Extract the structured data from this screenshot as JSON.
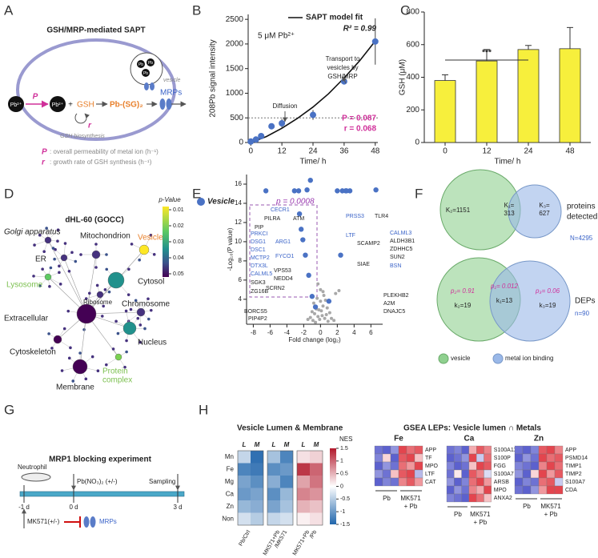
{
  "panel_labels": [
    "A",
    "B",
    "C",
    "D",
    "E",
    "F",
    "G",
    "H"
  ],
  "panel_a": {
    "title": "GSH/MRP-mediated SAPT",
    "pb_outside": "Pb²⁺",
    "pb_inside": "Pb²⁺",
    "plus": "+",
    "gsh": "GSH",
    "complex": "Pb-(SG)₂",
    "mrps": "MRPs",
    "vesicle": "vesicle",
    "pb_vesicle": "Pb",
    "biosynthesis": "GSH biosynthesis",
    "p_symbol": "P",
    "r_symbol": "r",
    "legend": [
      {
        "symbol": "P",
        "text": ": overall permeability of metal ion (h⁻¹)"
      },
      {
        "symbol": "r",
        "text": ": growth rate of GSH synthesis (h⁻¹)"
      }
    ]
  },
  "chart_data": [
    {
      "type": "scatter",
      "x": [
        0,
        2,
        4,
        8,
        12,
        24,
        36,
        48
      ],
      "values": [
        20,
        60,
        130,
        330,
        390,
        560,
        1240,
        2050
      ],
      "errors": [
        10,
        20,
        30,
        40,
        90,
        100,
        40,
        470
      ],
      "color": "#4a72c4",
      "fit": {
        "name": "SAPT model fit",
        "x": [
          0,
          6,
          12,
          18,
          24,
          30,
          36,
          42,
          48
        ],
        "values": [
          0,
          120,
          290,
          490,
          720,
          990,
          1310,
          1660,
          2060
        ]
      },
      "reference_line": 500,
      "xlim": [
        -1,
        49
      ],
      "ylim": [
        0,
        2600
      ],
      "xticks": [
        0,
        12,
        24,
        36,
        48
      ],
      "yticks": [
        0,
        500,
        1000,
        1500,
        2000,
        2500
      ],
      "xlabel": "Time/ h",
      "ylabel": "208Pb signal intensity",
      "annotations": {
        "condition": "5 μM Pb²⁺",
        "r_squared": "R² = 0.99",
        "transport": [
          "Transport to",
          "vesicles by",
          "GSH/MRP"
        ],
        "diffusion": "Diffusion",
        "p_fit": "P = 0.087",
        "r_fit": "r = 0.068"
      }
    },
    {
      "type": "bar",
      "categories": [
        "0",
        "12",
        "24",
        "48"
      ],
      "values": [
        380,
        500,
        570,
        575
      ],
      "errors": [
        35,
        70,
        25,
        130
      ],
      "color": "#f7ef3c",
      "ylim": [
        0,
        800
      ],
      "yticks": [
        0,
        200,
        400,
        600,
        800
      ],
      "xlabel": "Time/ h",
      "ylabel": "GSH (μM)",
      "significance": "***"
    },
    {
      "type": "volcano",
      "series": [
        {
          "name": "Vesicle",
          "color": "#4a72c4",
          "x": [
            -6.5,
            -3.1,
            -2.6,
            -1.6,
            -1.2,
            -2.5,
            -2.3,
            -2.1,
            -1.8,
            -1.4,
            -1.0,
            -0.6,
            1.0,
            3.1,
            3.5,
            6.6,
            2.4,
            2.0,
            2.6,
            3.0
          ],
          "values": [
            15.3,
            15.3,
            15.3,
            15.4,
            16.4,
            12.9,
            11.3,
            10.2,
            8.6,
            6.5,
            4.3,
            3.2,
            3.8,
            15.3,
            15.3,
            15.4,
            8.6,
            15.3,
            15.3,
            15.3
          ]
        },
        {
          "color": "#a8a8a8",
          "x": [
            -1.2,
            -0.9,
            -0.7,
            -0.5,
            -0.3,
            -0.1,
            0.1,
            0.3,
            0.5,
            0.7,
            0.9,
            1.1,
            -0.8,
            -0.4,
            0,
            0.4,
            0.8,
            -0.6,
            -0.2,
            0.2,
            0.6,
            -1.0,
            1.3,
            -1.5,
            1.6,
            0.0,
            -0.3,
            0.3,
            1.8,
            2.2
          ],
          "values": [
            2.1,
            1.8,
            2.5,
            3.0,
            2.2,
            1.9,
            2.8,
            3.3,
            2.0,
            2.4,
            1.7,
            2.6,
            3.6,
            4.1,
            3.8,
            4.4,
            3.1,
            1.6,
            2.9,
            2.3,
            3.9,
            2.7,
            2.0,
            1.9,
            1.8,
            5.0,
            5.6,
            4.8,
            4.6,
            4.9
          ]
        }
      ],
      "xlim": [
        -8.8,
        7.4
      ],
      "ylim": [
        1.4,
        17
      ],
      "xticks": [
        -8,
        -6,
        -4,
        -2,
        0,
        2,
        4,
        6
      ],
      "yticks": [
        4,
        6,
        8,
        10,
        12,
        14,
        16
      ],
      "xlabel": "Fold change (log₂)",
      "ylabel": "-Log₁₀(P value)",
      "p_value": "p = 0.0008",
      "gene_labels": [
        "CECR1",
        "PILRA",
        "ATM",
        "PIP",
        "PRKCI",
        "DSG1",
        "DSC1",
        "MCTP2",
        "DTX3L",
        "CALML5",
        "SGK3",
        "ZG16B",
        "ARG1",
        "FYCO1",
        "VPS53",
        "NEDD4",
        "SCRN2",
        "BORCS5",
        "PIP4P2",
        "PRSS3",
        "TLR4",
        "LTF",
        "SCAMP2",
        "CALML3",
        "ALDH3B1",
        "ZDHHC5",
        "SUN2",
        "BSN",
        "SIAE",
        "PLEKHB2",
        "A2M",
        "DNAJC5"
      ]
    }
  ],
  "panel_d": {
    "title": "dHL-60 (GOCC)",
    "colorbar_title": "p-Value",
    "colorbar_ticks": [
      0.01,
      0.02,
      0.03,
      0.04,
      0.05
    ],
    "terms": [
      "Mitochondrion",
      "Golgi apparatus",
      "Vesicles",
      "ER",
      "Cytosol",
      "Lysosome",
      "Ribosome",
      "Chromosome",
      "Extracellular",
      "Nucleus",
      "Cytoskeleton",
      "Membrane"
    ],
    "protein_complex": [
      "Protein",
      "complex"
    ]
  },
  "panel_f": {
    "top": {
      "k2": "K₂=1151",
      "k1": [
        "K₁=",
        "313"
      ],
      "k3": [
        "K₃=",
        "627"
      ],
      "label": [
        "proteins",
        "detected"
      ],
      "n": "N=4295"
    },
    "bottom": {
      "p2": "p₂= 0.91",
      "k2": "k₂=19",
      "p1": "p₁= 0.012",
      "k1": "k₁=13",
      "p3": "p₃= 0.06",
      "k3": "k₃=19",
      "label": "DEPs",
      "n": "n=90"
    },
    "legend": [
      "vesicle",
      "metal ion binding"
    ]
  },
  "panel_g": {
    "title": "MRP1 blocking experiment",
    "cells": "Neutrophil",
    "treatment": "Pb(NO₃)₂ (+/-)",
    "sampling": "Sampling",
    "days": [
      "-1 d",
      "0 d",
      "3 d"
    ],
    "inhibitor": "MK571(+/-)",
    "target": "MRPs"
  },
  "panel_h": {
    "nes": {
      "title": "Vesicle Lumen & Membrane",
      "rows": [
        "Mn",
        "Fe",
        "Mg",
        "Ca",
        "Zn",
        "Non"
      ],
      "columns": [
        "L",
        "M"
      ],
      "groups": [
        [
          "Pb/Ctrl"
        ],
        [
          "MK571+Pb",
          "/MK571"
        ],
        [
          "MK571+Pb",
          "/Pb"
        ]
      ],
      "values": [
        [
          [
            -0.4,
            -1.4
          ],
          [
            -1.2,
            -1.3
          ],
          [
            -0.9,
            -1.1
          ],
          [
            -1.0,
            -0.9
          ],
          [
            -0.7,
            -0.8
          ],
          [
            -0.3,
            -0.5
          ]
        ],
        [
          [
            -0.6,
            -1.2
          ],
          [
            -1.1,
            -1.0
          ],
          [
            -0.8,
            -1.2
          ],
          [
            -1.1,
            -0.7
          ],
          [
            -0.9,
            -0.6
          ],
          [
            -0.4,
            -0.3
          ]
        ],
        [
          [
            0.2,
            0.3
          ],
          [
            1.3,
            1.0
          ],
          [
            0.6,
            0.9
          ],
          [
            0.8,
            0.7
          ],
          [
            0.5,
            0.4
          ],
          [
            0.1,
            0.2
          ]
        ]
      ],
      "colorbar_title": "NES",
      "colorbar_ticks": [
        1.5,
        1,
        0.5,
        0,
        -0.5,
        -1,
        -1.5
      ]
    },
    "lep": {
      "title": "GSEA LEPs: Vesicle lumen ∩ Metals",
      "group_labels": {
        "pb": "Pb",
        "mk": [
          "MK571",
          "+ Pb"
        ]
      },
      "panels": [
        {
          "metal": "Fe",
          "genes": [
            "APP",
            "TF",
            "MPO",
            "LTF",
            "CAT"
          ],
          "values": [
            [
              -0.8,
              -0.9,
              -0.6,
              0.9,
              0.7,
              0.8
            ],
            [
              -0.7,
              0.2,
              -0.9,
              0.8,
              0.9,
              0.3
            ],
            [
              -0.9,
              -0.6,
              -0.8,
              0.7,
              0.5,
              0.9
            ],
            [
              -0.6,
              -0.8,
              0.3,
              0.8,
              0.9,
              -0.4
            ],
            [
              -0.9,
              -0.7,
              -0.8,
              0.6,
              0.8,
              0.5
            ]
          ]
        },
        {
          "metal": "Ca",
          "genes": [
            "S100A11",
            "S100P",
            "FGG",
            "S100A7",
            "ARSB",
            "MPO",
            "ANXA2"
          ],
          "values": [
            [
              -0.8,
              -0.7,
              -0.9,
              0.4,
              0.8,
              0.6
            ],
            [
              -0.9,
              -0.8,
              -0.6,
              0.9,
              -0.3,
              0.7
            ],
            [
              -0.7,
              -0.9,
              -0.8,
              0.3,
              0.9,
              0.8
            ],
            [
              -0.8,
              0.1,
              -0.9,
              0.8,
              0.6,
              -0.2
            ],
            [
              -0.6,
              -0.9,
              -0.7,
              0.7,
              0.9,
              0.5
            ],
            [
              -0.9,
              -0.6,
              -0.8,
              0.6,
              0.4,
              0.9
            ],
            [
              -0.7,
              -0.8,
              -0.9,
              0.9,
              0.7,
              0.3
            ]
          ]
        },
        {
          "metal": "Zn",
          "genes": [
            "APP",
            "PSMD14",
            "TIMP1",
            "TIMP2",
            "S100A7",
            "CDA"
          ],
          "values": [
            [
              -0.8,
              -0.9,
              -0.7,
              0.8,
              0.9,
              0.6
            ],
            [
              -0.9,
              -0.6,
              -0.8,
              0.9,
              0.7,
              0.8
            ],
            [
              -0.7,
              -0.8,
              -0.9,
              0.6,
              0.9,
              0.7
            ],
            [
              -0.6,
              -0.9,
              0.2,
              0.9,
              0.5,
              0.8
            ],
            [
              -0.9,
              -0.7,
              -0.8,
              0.7,
              0.8,
              -0.3
            ],
            [
              -0.8,
              -0.9,
              -0.6,
              0.5,
              0.9,
              0.9
            ]
          ]
        }
      ]
    }
  }
}
